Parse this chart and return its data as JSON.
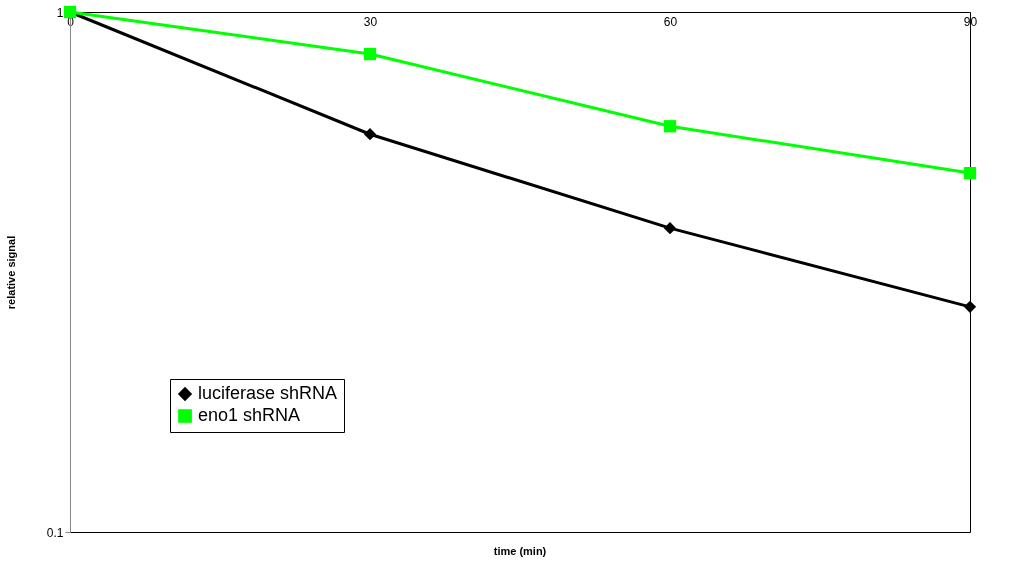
{
  "chart_data": {
    "type": "line",
    "xlabel": "time (min)",
    "ylabel": "relative signal",
    "x": [
      0,
      30,
      60,
      90
    ],
    "series": [
      {
        "name": "luciferase shRNA",
        "color": "#000000",
        "marker": "diamond",
        "values": [
          1,
          0.582,
          0.384,
          0.271
        ]
      },
      {
        "name": "eno1 shRNA",
        "color": "#00ff00",
        "marker": "square",
        "values": [
          1,
          0.83,
          0.603,
          0.49
        ]
      }
    ],
    "xlim": [
      0,
      90
    ],
    "xticks": [
      0,
      30,
      60,
      90
    ],
    "ylim": [
      0.1,
      1
    ],
    "yticks": [
      0.1,
      1
    ],
    "log": "y",
    "grid": false,
    "legend": "bottom left",
    "line_style": "solid"
  }
}
